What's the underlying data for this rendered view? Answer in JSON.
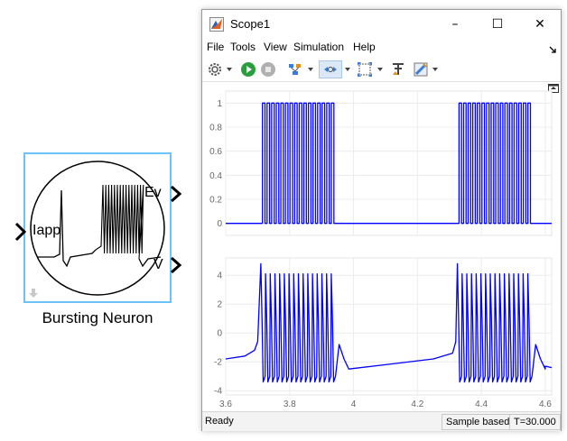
{
  "block": {
    "caption": "Bursting Neuron",
    "input_port": "Iapp",
    "output_ports": [
      "Ev",
      "V"
    ]
  },
  "window": {
    "title": "Scope1",
    "minimize": "–",
    "maximize": "☐",
    "close": "✕"
  },
  "menu": [
    "File",
    "Tools",
    "View",
    "Simulation",
    "Help"
  ],
  "toolbar_icons": [
    "gear-icon",
    "run-icon",
    "stop-icon",
    "signal-selector-icon",
    "zoom-icon",
    "autoscale-icon",
    "cursor-measure-icon",
    "style-icon"
  ],
  "status": {
    "left": "Ready",
    "mode": "Sample based",
    "time": "T=30.000"
  },
  "chart_data": [
    {
      "type": "line",
      "series_color": "#0000ff",
      "xlim": [
        3.6,
        4.62
      ],
      "ylim": [
        -0.1,
        1.1
      ],
      "yticks": [
        "0",
        "0.2",
        "0.4",
        "0.6",
        "0.8",
        "1"
      ],
      "ytick_values": [
        0,
        0.2,
        0.4,
        0.6,
        0.8,
        1
      ],
      "grid": true,
      "bursts": [
        {
          "start": 3.715,
          "end": 3.945,
          "pulses": 16,
          "high": 1,
          "low": 0
        },
        {
          "start": 4.33,
          "end": 4.56,
          "pulses": 16,
          "high": 1,
          "low": 0
        }
      ]
    },
    {
      "type": "line",
      "series_color": "#0000ff",
      "xlim": [
        3.6,
        4.62
      ],
      "ylim": [
        -4.3,
        5.2
      ],
      "xticks": [
        "3.6",
        "3.8",
        "4",
        "4.2",
        "4.4",
        "4.6"
      ],
      "xtick_values": [
        3.6,
        3.8,
        4.0,
        4.2,
        4.4,
        4.6
      ],
      "yticks": [
        "-4",
        "-2",
        "0",
        "2",
        "4"
      ],
      "ytick_values": [
        -4,
        -2,
        0,
        2,
        4
      ],
      "grid": true,
      "baseline_start": -1.8,
      "burst_peak": 4.8,
      "spike_high": 4.1,
      "spike_low": -3.4,
      "recovery_min": -2.5,
      "bursts": [
        {
          "start": 3.71,
          "end": 3.945,
          "spikes": 16
        },
        {
          "start": 4.325,
          "end": 4.56,
          "spikes": 16
        }
      ]
    }
  ]
}
